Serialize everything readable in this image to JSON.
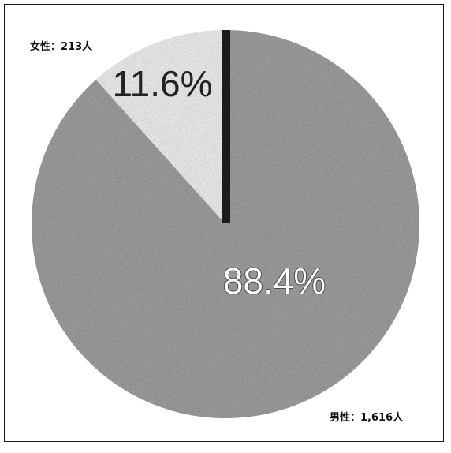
{
  "chart_data": {
    "type": "pie",
    "title": "",
    "start_angle_deg": 0,
    "direction": "counterclockwise",
    "legend": "none",
    "slices": [
      {
        "name": "女性",
        "value": 213,
        "percent_label": "11.6%",
        "category_label": "女性：213人",
        "color": "#e8e8e8"
      },
      {
        "name": "男性",
        "value": 1616,
        "percent_label": "88.4%",
        "category_label": "男性：1,616人",
        "color": "#9a9a9a"
      }
    ]
  }
}
